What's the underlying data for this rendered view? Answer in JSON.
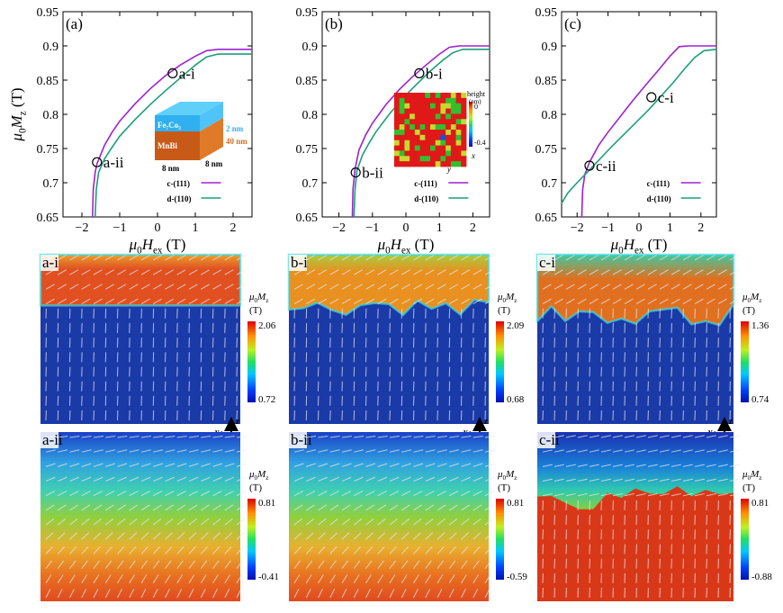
{
  "charts": [
    {
      "panel_label": "(a)",
      "xlabel_pre": "μ",
      "xlabel_sub0": "0",
      "xlabel_main": "H",
      "xlabel_sub": "ex",
      "xlabel_unit": " (T)",
      "ylabel_pre": "μ",
      "ylabel_sub0": "0",
      "ylabel_main": "M",
      "ylabel_sub": "z",
      "ylabel_unit": " (T)",
      "legend": [
        "c-(111)",
        "d-(110)"
      ],
      "markers": [
        {
          "label": "a-i",
          "x": 0.4,
          "y": 0.86
        },
        {
          "label": "a-ii",
          "x": -1.6,
          "y": 0.73
        }
      ],
      "inset": {
        "type": "bilayer",
        "top_label": "Fe₇Co₃",
        "bottom_label": "MnBi",
        "thickness_top": "2 nm",
        "thickness_bottom": "40 nm",
        "size_a": "8 nm",
        "size_b": "8 nm"
      }
    },
    {
      "panel_label": "(b)",
      "xlabel_pre": "μ",
      "xlabel_sub0": "0",
      "xlabel_main": "H",
      "xlabel_sub": "ex",
      "xlabel_unit": " (T)",
      "ylabel_pre": "μ",
      "ylabel_sub0": "0",
      "ylabel_main": "M",
      "ylabel_sub": "z",
      "ylabel_unit": " (T)",
      "legend": [
        "c-(111)",
        "d-(110)"
      ],
      "markers": [
        {
          "label": "b-i",
          "x": 0.4,
          "y": 0.86
        },
        {
          "label": "b-ii",
          "x": -1.5,
          "y": 0.715
        }
      ],
      "inset": {
        "type": "roughness",
        "title_a": "height",
        "title_b": "(nm)",
        "max": "0",
        "min": "-0.4",
        "axis_y": "y",
        "axis_x": "x"
      }
    },
    {
      "panel_label": "(c)",
      "xlabel_pre": "μ",
      "xlabel_sub0": "0",
      "xlabel_main": "H",
      "xlabel_sub": "ex",
      "xlabel_unit": " (T)",
      "ylabel_pre": "μ",
      "ylabel_sub0": "0",
      "ylabel_main": "M",
      "ylabel_sub": "z",
      "ylabel_unit": " (T)",
      "legend": [
        "c-(111)",
        "d-(110)"
      ],
      "markers": [
        {
          "label": "c-i",
          "x": 0.4,
          "y": 0.825
        },
        {
          "label": "c-ii",
          "x": -1.6,
          "y": 0.725
        }
      ],
      "inset": null
    }
  ],
  "chart_data": [
    {
      "type": "line",
      "xlim": [
        -2.5,
        2.5
      ],
      "ylim": [
        0.65,
        0.95
      ],
      "xticks": [
        -2,
        -1,
        0,
        1,
        2
      ],
      "yticks": [
        0.65,
        0.7,
        0.75,
        0.8,
        0.85,
        0.9,
        0.95
      ],
      "series": [
        {
          "name": "c-(111)",
          "color": "#a020d0",
          "x": [
            -1.72,
            -1.7,
            -1.65,
            -1.6,
            -1.4,
            -1.2,
            -1.0,
            -0.6,
            -0.2,
            0.2,
            0.6,
            1.0,
            1.3,
            1.6,
            2.5
          ],
          "y": [
            0.65,
            0.69,
            0.715,
            0.728,
            0.755,
            0.774,
            0.79,
            0.815,
            0.837,
            0.856,
            0.872,
            0.885,
            0.893,
            0.895,
            0.895
          ]
        },
        {
          "name": "d-(110)",
          "color": "#1aa07a",
          "x": [
            -1.65,
            -1.62,
            -1.56,
            -1.4,
            -1.2,
            -1.0,
            -0.6,
            -0.2,
            0.2,
            0.6,
            1.0,
            1.3,
            1.6,
            2.5
          ],
          "y": [
            0.65,
            0.69,
            0.715,
            0.735,
            0.752,
            0.768,
            0.792,
            0.814,
            0.834,
            0.853,
            0.872,
            0.884,
            0.888,
            0.888
          ]
        }
      ]
    },
    {
      "type": "line",
      "xlim": [
        -2.5,
        2.5
      ],
      "ylim": [
        0.65,
        0.95
      ],
      "xticks": [
        -2,
        -1,
        0,
        1,
        2
      ],
      "yticks": [
        0.65,
        0.7,
        0.75,
        0.8,
        0.85,
        0.9,
        0.95
      ],
      "series": [
        {
          "name": "c-(111)",
          "color": "#a020d0",
          "x": [
            -1.6,
            -1.58,
            -1.52,
            -1.4,
            -1.2,
            -1.0,
            -0.6,
            -0.2,
            0.2,
            0.6,
            1.0,
            1.3,
            1.6,
            2.5
          ],
          "y": [
            0.65,
            0.69,
            0.72,
            0.748,
            0.77,
            0.787,
            0.814,
            0.836,
            0.855,
            0.872,
            0.888,
            0.898,
            0.9,
            0.9
          ]
        },
        {
          "name": "d-(110)",
          "color": "#1aa07a",
          "x": [
            -1.55,
            -1.52,
            -1.46,
            -1.3,
            -1.1,
            -0.9,
            -0.5,
            -0.1,
            0.3,
            0.7,
            1.1,
            1.4,
            1.7,
            2.5
          ],
          "y": [
            0.65,
            0.69,
            0.718,
            0.74,
            0.758,
            0.774,
            0.8,
            0.823,
            0.843,
            0.862,
            0.879,
            0.89,
            0.895,
            0.895
          ]
        }
      ]
    },
    {
      "type": "line",
      "xlim": [
        -2.5,
        2.5
      ],
      "ylim": [
        0.65,
        0.95
      ],
      "xticks": [
        -2,
        -1,
        0,
        1,
        2
      ],
      "yticks": [
        0.65,
        0.7,
        0.75,
        0.8,
        0.85,
        0.9,
        0.95
      ],
      "series": [
        {
          "name": "c-(111)",
          "color": "#a020d0",
          "x": [
            -1.85,
            -1.82,
            -1.75,
            -1.6,
            -1.3,
            -1.0,
            -0.6,
            -0.2,
            0.2,
            0.6,
            1.0,
            1.3,
            1.6,
            2.5
          ],
          "y": [
            0.65,
            0.69,
            0.712,
            0.73,
            0.755,
            0.774,
            0.797,
            0.82,
            0.842,
            0.863,
            0.885,
            0.899,
            0.9,
            0.9
          ]
        },
        {
          "name": "d-(110)",
          "color": "#1aa07a",
          "x": [
            -2.5,
            -2.3,
            -2.0,
            -1.7,
            -1.3,
            -0.9,
            -0.5,
            -0.1,
            0.3,
            0.7,
            1.1,
            1.5,
            1.8,
            2.1,
            2.5
          ],
          "y": [
            0.67,
            0.685,
            0.7,
            0.714,
            0.733,
            0.752,
            0.77,
            0.788,
            0.806,
            0.826,
            0.846,
            0.868,
            0.883,
            0.893,
            0.895
          ]
        }
      ]
    }
  ],
  "maps": [
    {
      "label": "a-i",
      "cb_title_pre": "μ",
      "cb_title_sub0": "0",
      "cb_title_main": "M",
      "cb_title_sub": "z",
      "cb_unit": "(T)",
      "cb_max": "2.06",
      "cb_min": "0.72",
      "pattern": "wall",
      "wall": 0.3,
      "jitter": 0.0,
      "top_color": "#e8a030",
      "top_fade": "#e05020",
      "bottom_color": "#1a3aa8",
      "axes": true
    },
    {
      "label": "b-i",
      "cb_title_pre": "μ",
      "cb_title_sub0": "0",
      "cb_title_main": "M",
      "cb_title_sub": "z",
      "cb_unit": "(T)",
      "cb_max": "2.09",
      "cb_min": "0.68",
      "pattern": "wall",
      "wall": 0.3,
      "jitter": 0.06,
      "top_color": "#a8cc40",
      "top_fade": "#e89020",
      "bottom_color": "#1a3aa8",
      "axes": true
    },
    {
      "label": "c-i",
      "cb_title_pre": "μ",
      "cb_title_sub0": "0",
      "cb_title_main": "M",
      "cb_title_sub": "z",
      "cb_unit": "(T)",
      "cb_max": "1.36",
      "cb_min": "0.74",
      "pattern": "wall",
      "wall": 0.36,
      "jitter": 0.07,
      "top_color": "#40c8a0",
      "top_fade": "#e07020",
      "bottom_color": "#1a3aa8",
      "axes": true
    },
    {
      "label": "a-ii",
      "cb_title_pre": "μ",
      "cb_title_sub0": "0",
      "cb_title_main": "M",
      "cb_title_sub": "z",
      "cb_unit": "(T)",
      "cb_max": "0.81",
      "cb_min": "-0.41",
      "pattern": "gradient",
      "axes": false
    },
    {
      "label": "b-ii",
      "cb_title_pre": "μ",
      "cb_title_sub0": "0",
      "cb_title_main": "M",
      "cb_title_sub": "z",
      "cb_unit": "(T)",
      "cb_max": "0.81",
      "cb_min": "-0.59",
      "pattern": "gradient",
      "axes": false
    },
    {
      "label": "c-ii",
      "cb_title_pre": "μ",
      "cb_title_sub0": "0",
      "cb_title_main": "M",
      "cb_title_sub": "z",
      "cb_unit": "(T)",
      "cb_max": "0.81",
      "cb_min": "-0.88",
      "pattern": "wall_inv",
      "wall": 0.42,
      "jitter": 0.06,
      "axes": false
    }
  ],
  "axes_labels": {
    "z": "z",
    "y": "y"
  }
}
